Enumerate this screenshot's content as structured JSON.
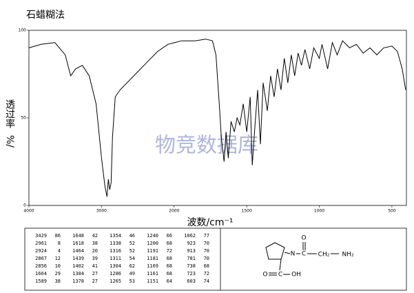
{
  "chart_data": {
    "type": "line",
    "title": "石蜡糊法",
    "x_label": "波数/cm⁻¹",
    "y_label": "透过率",
    "y_unit": "%/",
    "watermark": "物竞数据库",
    "color": "#000000",
    "x": [
      4000,
      3830,
      3642,
      3500,
      3425,
      3358,
      3264,
      3170,
      3075,
      3000,
      2953,
      2925,
      2906,
      2887,
      2868,
      2849,
      2811,
      2745,
      2651,
      2509,
      2368,
      2226,
      2085,
      1948,
      1854,
      1783,
      1736,
      1712,
      1689,
      1675,
      1656,
      1642,
      1627,
      1608,
      1585,
      1566,
      1547,
      1524,
      1500,
      1476,
      1462,
      1443,
      1425,
      1406,
      1387,
      1358,
      1335,
      1311,
      1288,
      1264,
      1241,
      1217,
      1193,
      1170,
      1146,
      1123,
      1099,
      1066,
      1038,
      1000,
      981,
      943,
      910,
      877,
      840,
      792,
      745,
      698,
      651,
      604,
      557,
      500,
      462,
      429,
      405
    ],
    "values": [
      90,
      92,
      93,
      86,
      74,
      78,
      80,
      74,
      58,
      27,
      11,
      5,
      15,
      9,
      13,
      39,
      62,
      66,
      70,
      76,
      82,
      88,
      92,
      94,
      94,
      95,
      94,
      86,
      58,
      39,
      25,
      42,
      27,
      48,
      42,
      50,
      46,
      58,
      42,
      62,
      23,
      46,
      66,
      35,
      70,
      54,
      74,
      62,
      78,
      66,
      84,
      70,
      86,
      74,
      87,
      80,
      89,
      78,
      90,
      84,
      92,
      78,
      93,
      86,
      94,
      90,
      92,
      87,
      90,
      86,
      90,
      91,
      88,
      78,
      66
    ],
    "xlim": [
      4000,
      400
    ],
    "xticks": [
      4000,
      3000,
      2000,
      1500,
      1000,
      500
    ],
    "ylim": [
      0,
      100
    ],
    "yticks": [
      0,
      50,
      100
    ],
    "grid": false
  },
  "peak_table": {
    "columns": [
      [
        [
          3429,
          86
        ],
        [
          2961,
          8
        ],
        [
          2924,
          4
        ],
        [
          2867,
          12
        ],
        [
          2856,
          10
        ],
        [
          1664,
          29
        ],
        [
          1589,
          38
        ]
      ],
      [
        [
          1648,
          42
        ],
        [
          1618,
          38
        ],
        [
          1464,
          20
        ],
        [
          1439,
          39
        ],
        [
          1402,
          41
        ],
        [
          1384,
          27
        ],
        [
          1378,
          27
        ]
      ],
      [
        [
          1354,
          46
        ],
        [
          1338,
          52
        ],
        [
          1316,
          52
        ],
        [
          1311,
          54
        ],
        [
          1304,
          62
        ],
        [
          1286,
          49
        ],
        [
          1265,
          53
        ]
      ],
      [
        [
          1240,
          66
        ],
        [
          1200,
          68
        ],
        [
          1191,
          72
        ],
        [
          1181,
          68
        ],
        [
          1169,
          68
        ],
        [
          1161,
          68
        ],
        [
          1151,
          64
        ]
      ],
      [
        [
          1062,
          77
        ],
        [
          923,
          70
        ],
        [
          913,
          70
        ],
        [
          781,
          70
        ],
        [
          738,
          68
        ],
        [
          723,
          72
        ],
        [
          603,
          74
        ]
      ]
    ]
  },
  "structure": {
    "atoms": [
      "N",
      "O",
      "C",
      "CH₂",
      "NH₂",
      "O",
      "C",
      "OH"
    ]
  }
}
